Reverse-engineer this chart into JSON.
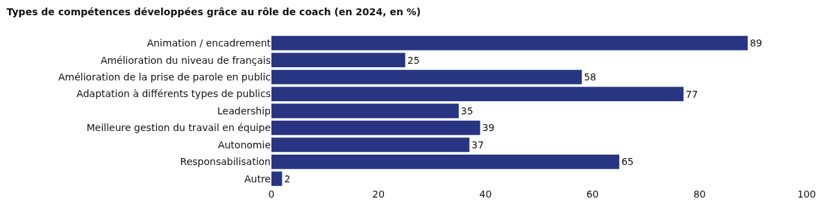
{
  "chart_data": {
    "type": "bar",
    "orientation": "horizontal",
    "title": "Types de compétences développées grâce au rôle de coach (en 2024, en %)",
    "categories": [
      "Animation / encadrement",
      "Amélioration du niveau de français",
      "Amélioration de la prise de parole en public",
      "Adaptation à différents types de publics",
      "Leadership",
      "Meilleure gestion du travail en équipe",
      "Autonomie",
      "Responsabilisation",
      "Autre"
    ],
    "values": [
      89,
      25,
      58,
      77,
      35,
      39,
      37,
      65,
      2
    ],
    "color": "#283583",
    "xlim": [
      0,
      100
    ],
    "xticks": [
      0,
      20,
      40,
      60,
      80,
      100
    ],
    "legend": false,
    "data_labels": true
  }
}
